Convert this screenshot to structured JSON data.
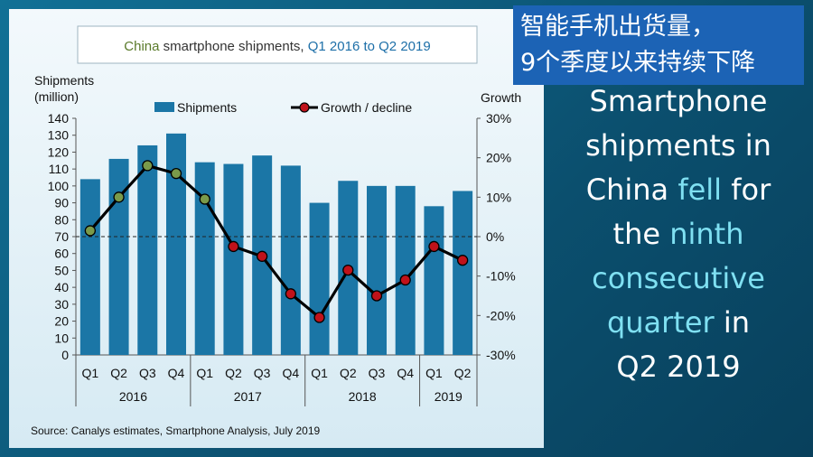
{
  "chart_data": {
    "type": "bar",
    "title": {
      "part1": "China",
      "part2": " smartphone  shipments, ",
      "part3": "Q1 2016 to Q2 2019"
    },
    "ylabel_line1": "Shipments",
    "ylabel_line2": "(million)",
    "y2label": "Growth",
    "ylim": [
      0,
      140
    ],
    "y_ticks": [
      "0",
      "10",
      "20",
      "30",
      "40",
      "50",
      "60",
      "70",
      "80",
      "90",
      "100",
      "110",
      "120",
      "130",
      "140"
    ],
    "y2lim": [
      -30,
      30
    ],
    "y2_ticks": [
      "-30%",
      "-20%",
      "-10%",
      "0%",
      "10%",
      "20%",
      "30%"
    ],
    "categories": [
      "Q1",
      "Q2",
      "Q3",
      "Q4",
      "Q1",
      "Q2",
      "Q3",
      "Q4",
      "Q1",
      "Q2",
      "Q3",
      "Q4",
      "Q1",
      "Q2"
    ],
    "years": [
      {
        "label": "2016",
        "start": 0,
        "end": 3
      },
      {
        "label": "2017",
        "start": 4,
        "end": 7
      },
      {
        "label": "2018",
        "start": 8,
        "end": 11
      },
      {
        "label": "2019",
        "start": 12,
        "end": 13
      }
    ],
    "series": [
      {
        "name": "Shipments",
        "type": "bar",
        "color": "#1b76a6",
        "values": [
          104,
          116,
          124,
          131,
          114,
          113,
          118,
          112,
          90,
          103,
          100,
          100,
          88,
          97
        ]
      },
      {
        "name": "Growth / decline",
        "type": "line",
        "color": "#000000",
        "values": [
          1.5,
          10,
          18,
          16,
          9.5,
          -2.5,
          -5,
          -14.5,
          -20.5,
          -8.5,
          -15,
          -11,
          -2.5,
          -6
        ],
        "marker_green": "#7a9a4a",
        "marker_red": "#c0121a"
      }
    ],
    "legend": "top",
    "grid": false,
    "source": "Source:  Canalys estimates, Smartphone  Analysis, July 2019"
  },
  "cn_title_line1": "智能手机出货量，",
  "cn_title_line2": "9个季度以来持续下降",
  "headline": {
    "l1": "Smartphone",
    "l2": "shipments in",
    "l3a": "China ",
    "l3b": "fell",
    "l3c": " for",
    "l4a": "the ",
    "l4b": "ninth",
    "l5": "consecutive",
    "l6a": "quarter",
    "l6b": " in",
    "l7": "Q2 2019"
  },
  "colors": {
    "accent_text": "#7fe0f2",
    "title_green": "#5a7a2a",
    "title_blue": "#1d6fa8",
    "cn_box": "#1c63b5"
  }
}
